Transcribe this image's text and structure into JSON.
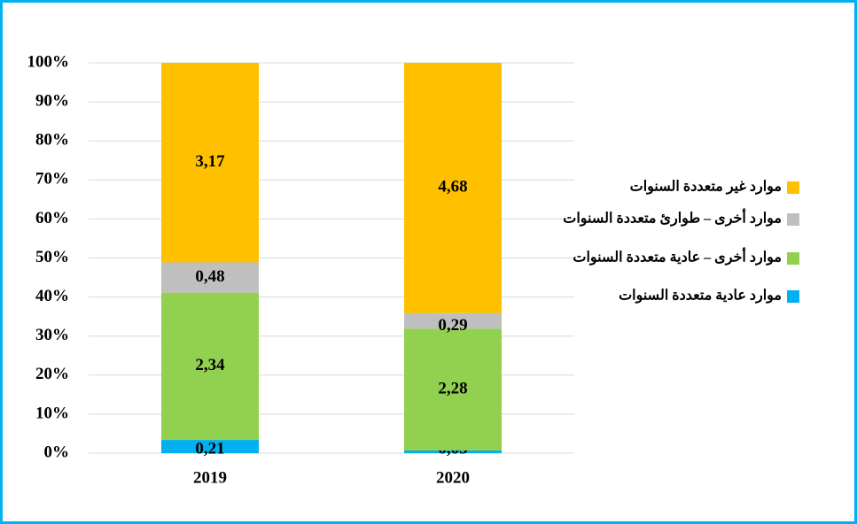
{
  "chart_data": {
    "type": "bar",
    "stacking": "percent",
    "categories": [
      "2019",
      "2020"
    ],
    "series": [
      {
        "name": "موارد عادية متعددة السنوات",
        "color": "#00b0f0",
        "values": [
          0.21,
          0.05
        ],
        "value_labels": [
          "0,21",
          "0,05"
        ]
      },
      {
        "name": "موارد أخرى – عادية متعددة السنوات",
        "color": "#92d050",
        "values": [
          2.34,
          2.28
        ],
        "value_labels": [
          "2,34",
          "2,28"
        ]
      },
      {
        "name": "موارد أخرى – طوارئ متعددة السنوات",
        "color": "#bfbfbf",
        "values": [
          0.48,
          0.29
        ],
        "value_labels": [
          "0,48",
          "0,29"
        ]
      },
      {
        "name": "موارد غير متعددة السنوات",
        "color": "#ffc000",
        "values": [
          3.17,
          4.68
        ],
        "value_labels": [
          "3,17",
          "4,68"
        ]
      }
    ],
    "ylim": [
      0,
      100
    ],
    "yticks": [
      {
        "value": 0,
        "label": "0%"
      },
      {
        "value": 10,
        "label": "10%"
      },
      {
        "value": 20,
        "label": "20%"
      },
      {
        "value": 30,
        "label": "30%"
      },
      {
        "value": 40,
        "label": "40%"
      },
      {
        "value": 50,
        "label": "50%"
      },
      {
        "value": 60,
        "label": "60%"
      },
      {
        "value": 70,
        "label": "70%"
      },
      {
        "value": 80,
        "label": "80%"
      },
      {
        "value": 90,
        "label": "90%"
      },
      {
        "value": 100,
        "label": "100%"
      }
    ],
    "grid": true,
    "legend": "right"
  }
}
